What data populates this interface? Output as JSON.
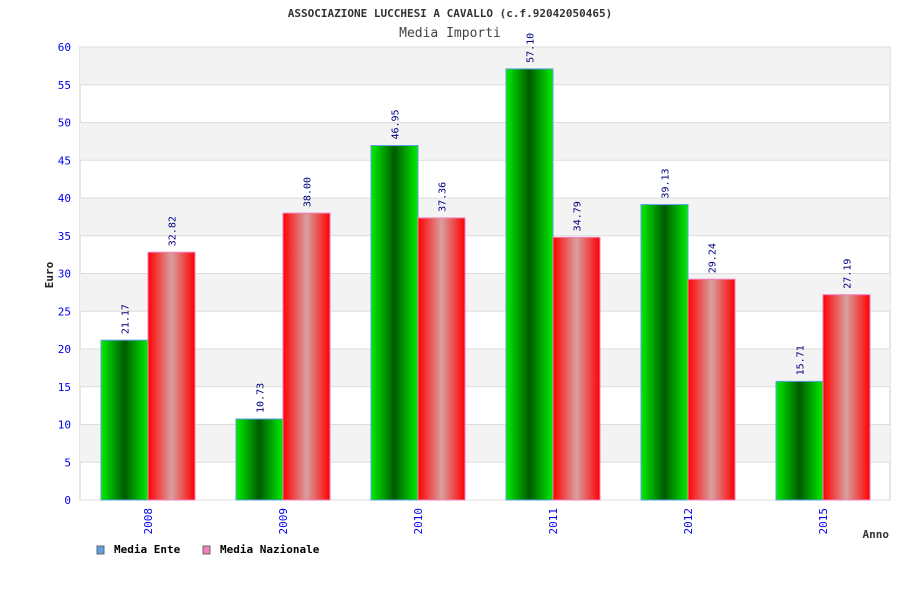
{
  "chart_data": {
    "type": "bar",
    "title": "ASSOCIAZIONE LUCCHESI A CAVALLO (c.f.92042050465)",
    "subtitle": "Media Importi",
    "xlabel": "Anno",
    "ylabel": "Euro",
    "ylim": [
      0,
      60
    ],
    "yticks": [
      0,
      5,
      10,
      15,
      20,
      25,
      30,
      35,
      40,
      45,
      50,
      55,
      60
    ],
    "categories": [
      "2008",
      "2009",
      "2010",
      "2011",
      "2012",
      "2015"
    ],
    "series": [
      {
        "name": "Media Ente",
        "values": [
          21.17,
          10.73,
          46.95,
          57.1,
          39.13,
          15.71
        ],
        "labels": [
          "21.17",
          "10.73",
          "46.95",
          "57.10",
          "39.13",
          "15.71"
        ],
        "legend_color": "#5aa0e8"
      },
      {
        "name": "Media Nazionale",
        "values": [
          32.82,
          38.0,
          37.36,
          34.79,
          29.24,
          27.19
        ],
        "labels": [
          "32.82",
          "38.00",
          "37.36",
          "34.79",
          "29.24",
          "27.19"
        ],
        "legend_color": "#f080c0"
      }
    ],
    "grid": true,
    "legend_position": "bottom-left"
  }
}
